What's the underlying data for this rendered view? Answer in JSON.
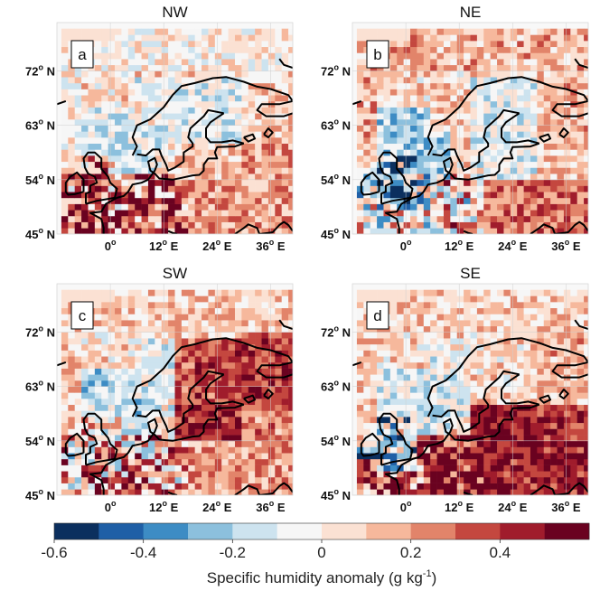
{
  "chart_data": {
    "type": "heatmap",
    "variable_label": "Specific humidity anomaly (g kg",
    "variable_unit_exp": "-1",
    "variable_label_close": ")",
    "colorbar": {
      "range": [
        -0.6,
        0.6
      ],
      "bins": 12,
      "colors": [
        "#0b2f5e",
        "#1f5fa6",
        "#3d8cc4",
        "#8cc0dd",
        "#cde3ef",
        "#f6f6f6",
        "#fbe1d3",
        "#f6b89c",
        "#e2846a",
        "#c4473f",
        "#a01c2c",
        "#6a0220"
      ],
      "tick_labels": [
        "-0.6",
        "-0.4",
        "-0.2",
        "0",
        "0.2",
        "0.4"
      ],
      "tick_values": [
        -0.6,
        -0.4,
        -0.2,
        0,
        0.2,
        0.4
      ]
    },
    "map": {
      "lon_range": [
        -12,
        41
      ],
      "lat_range": [
        45,
        80
      ],
      "lat_ticks": [
        72,
        63,
        54,
        45
      ],
      "lon_ticks": [
        0,
        12,
        24,
        36
      ],
      "lat_tick_text": [
        "72",
        "63",
        "54",
        "45"
      ],
      "lat_suffix": " N",
      "lon_tick_text": [
        "0",
        "12",
        "24",
        "36"
      ],
      "lon_suffix": " E",
      "degree_symbol": "o"
    },
    "panels": [
      {
        "title": "NW",
        "letter": "a",
        "regions": {
          "background": 0.05,
          "northsea": -0.1,
          "scandinavia": -0.08,
          "norway_coast": -0.05,
          "arctic": 0.0,
          "uk_ireland": 0.25,
          "west_europe": 0.4,
          "central_europe": 0.35,
          "east_europe": 0.2,
          "baltic": 0.12,
          "southeast": 0.2,
          "russia_north": 0.08
        }
      },
      {
        "title": "NE",
        "letter": "b",
        "regions": {
          "background": 0.05,
          "northsea": -0.2,
          "scandinavia": -0.1,
          "norway_coast": 0.1,
          "arctic": 0.15,
          "uk_ireland": -0.25,
          "west_europe": -0.05,
          "central_europe": 0.1,
          "east_europe": 0.12,
          "baltic": -0.05,
          "southeast": 0.3,
          "russia_north": 0.15
        }
      },
      {
        "title": "SW",
        "letter": "c",
        "regions": {
          "background": 0.05,
          "northsea": -0.15,
          "scandinavia": 0.35,
          "norway_coast": -0.05,
          "arctic": 0.1,
          "uk_ireland": 0.1,
          "west_europe": 0.15,
          "central_europe": 0.2,
          "east_europe": 0.25,
          "baltic": 0.45,
          "southeast": 0.2,
          "russia_north": 0.4
        }
      },
      {
        "title": "SE",
        "letter": "d",
        "regions": {
          "background": 0.05,
          "northsea": -0.1,
          "scandinavia": 0.05,
          "norway_coast": -0.05,
          "arctic": 0.08,
          "uk_ireland": -0.2,
          "west_europe": 0.35,
          "central_europe": 0.55,
          "east_europe": 0.4,
          "baltic": 0.5,
          "southeast": 0.45,
          "russia_north": 0.15
        }
      }
    ]
  }
}
